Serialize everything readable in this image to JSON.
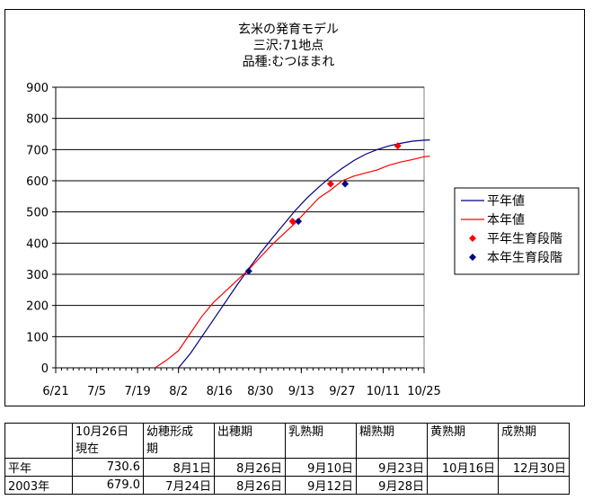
{
  "chart_data": {
    "type": "line",
    "title_lines": [
      "玄米の発育モデル",
      "三沢:71地点",
      "品種:むつほまれ"
    ],
    "ylim": [
      0,
      900
    ],
    "y_ticks": [
      0,
      100,
      200,
      300,
      400,
      500,
      600,
      700,
      800,
      900
    ],
    "x_tick_labels": [
      "6/21",
      "7/5",
      "7/19",
      "8/2",
      "8/16",
      "8/30",
      "9/13",
      "9/27",
      "10/11",
      "10/25"
    ],
    "x_tick_days": [
      0,
      14,
      28,
      42,
      56,
      70,
      84,
      98,
      112,
      126
    ],
    "grid": "horizontal",
    "legend_position": "right",
    "series": [
      {
        "name": "平年値",
        "color": "#000080",
        "x": [
          42,
          46,
          50,
          54,
          58,
          62,
          66,
          70,
          74,
          78,
          82,
          86,
          90,
          94,
          98,
          102,
          106,
          110,
          114,
          118,
          122,
          126,
          128
        ],
        "y": [
          0,
          45,
          100,
          155,
          210,
          265,
          318,
          368,
          415,
          460,
          505,
          545,
          580,
          612,
          640,
          665,
          685,
          700,
          712,
          720,
          727,
          730,
          731
        ]
      },
      {
        "name": "本年値",
        "color": "#ff0000",
        "x": [
          34,
          38,
          42,
          46,
          50,
          54,
          58,
          62,
          66,
          70,
          74,
          78,
          82,
          86,
          90,
          94,
          98,
          102,
          106,
          110,
          114,
          118,
          122,
          126,
          128
        ],
        "y": [
          0,
          25,
          55,
          110,
          165,
          210,
          245,
          280,
          315,
          355,
          395,
          430,
          465,
          505,
          545,
          570,
          600,
          615,
          625,
          635,
          650,
          660,
          668,
          677,
          679
        ]
      }
    ],
    "stage_points": [
      {
        "name": "平年生育段階",
        "color": "#ff0000",
        "x": [
          81,
          94,
          117
        ],
        "y": [
          470,
          590,
          712
        ]
      },
      {
        "name": "本年生育段階",
        "color": "#000080",
        "x": [
          66,
          83,
          99
        ],
        "y": [
          310,
          470,
          590
        ]
      }
    ]
  },
  "table": {
    "header": [
      "",
      "10月26日\n現在",
      "幼穂形成\n期",
      "出穂期",
      "乳熟期",
      "糊熟期",
      "黄熟期",
      "成熟期"
    ],
    "rows": [
      [
        "平年",
        "730.6",
        "8月1日",
        "8月26日",
        "9月10日",
        "9月23日",
        "10月16日",
        "12月30日"
      ],
      [
        "2003年",
        "679.0",
        "7月24日",
        "8月26日",
        "9月12日",
        "9月28日",
        "",
        ""
      ]
    ]
  }
}
